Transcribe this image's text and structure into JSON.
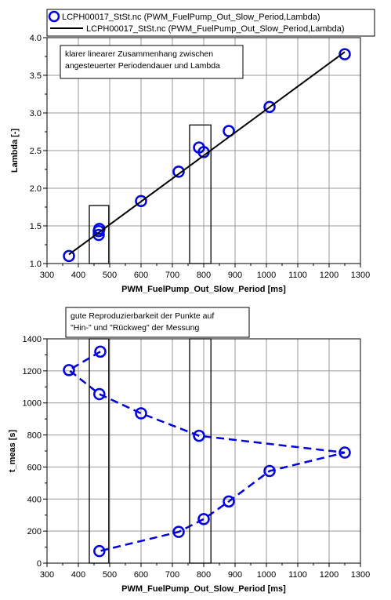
{
  "chart_data": [
    {
      "type": "scatter",
      "xlabel": "PWM_FuelPump_Out_Slow_Period [ms]",
      "ylabel": "Lambda [-]",
      "xlim": [
        300,
        1300
      ],
      "ylim": [
        1.0,
        4.0
      ],
      "xticks": [
        "300",
        "400",
        "500",
        "600",
        "700",
        "800",
        "900",
        "1000",
        "1100",
        "1200",
        "1300"
      ],
      "yticks": [
        "1.0",
        "1.5",
        "2.0",
        "2.5",
        "3.0",
        "3.5",
        "4.0"
      ],
      "grid": true,
      "legend": [
        "LCPH00017_StSt.nc (PWM_FuelPump_Out_Slow_Period,Lambda)",
        "LCPH00017_StSt.nc (PWM_FuelPump_Out_Slow_Period,Lambda)"
      ],
      "series": [
        {
          "style": "circle-markers",
          "color": "#0000e0",
          "points": [
            {
              "x": 370,
              "y": 1.1
            },
            {
              "x": 465,
              "y": 1.38
            },
            {
              "x": 465,
              "y": 1.43
            },
            {
              "x": 467,
              "y": 1.46
            },
            {
              "x": 600,
              "y": 1.83
            },
            {
              "x": 720,
              "y": 2.22
            },
            {
              "x": 785,
              "y": 2.54
            },
            {
              "x": 800,
              "y": 2.48
            },
            {
              "x": 880,
              "y": 2.76
            },
            {
              "x": 1010,
              "y": 3.08
            },
            {
              "x": 1250,
              "y": 3.78
            }
          ]
        },
        {
          "style": "solid-line",
          "color": "#000000",
          "points": [
            {
              "x": 370,
              "y": 1.12
            },
            {
              "x": 1250,
              "y": 3.81
            }
          ]
        }
      ],
      "annotation": {
        "lines": [
          "klarer linearer Zusammenhang zwischen",
          "angesteuerter Periodendauer und Lambda"
        ]
      },
      "highlight_boxes": [
        {
          "x0": 435,
          "x1": 497,
          "y0": 1.0,
          "y1": 1.77
        },
        {
          "x0": 755,
          "x1": 823,
          "y0": 1.0,
          "y1": 2.84
        }
      ]
    },
    {
      "type": "line",
      "xlabel": "PWM_FuelPump_Out_Slow_Period [ms]",
      "ylabel": "t_meas [s]",
      "xlim": [
        300,
        1300
      ],
      "ylim": [
        0,
        1400
      ],
      "xticks": [
        "300",
        "400",
        "500",
        "600",
        "700",
        "800",
        "900",
        "1000",
        "1100",
        "1200",
        "1300"
      ],
      "yticks": [
        "0",
        "200",
        "400",
        "600",
        "800",
        "1000",
        "1200",
        "1400"
      ],
      "grid": true,
      "series": [
        {
          "style": "dashed-line-circle-markers",
          "color": "#0000e0",
          "points": [
            {
              "x": 470,
              "y": 1320
            },
            {
              "x": 370,
              "y": 1205
            },
            {
              "x": 467,
              "y": 1055
            },
            {
              "x": 600,
              "y": 935
            },
            {
              "x": 785,
              "y": 795
            },
            {
              "x": 1250,
              "y": 690
            },
            {
              "x": 1010,
              "y": 575
            },
            {
              "x": 880,
              "y": 385
            },
            {
              "x": 800,
              "y": 275
            },
            {
              "x": 720,
              "y": 195
            },
            {
              "x": 467,
              "y": 75
            }
          ]
        }
      ],
      "annotation": {
        "lines": [
          "gute Reproduzierbarkeit der Punkte auf",
          "\"Hin-\" und \"Rückweg\" der Messung"
        ]
      },
      "highlight_boxes": [
        {
          "x0": 435,
          "x1": 497,
          "y0": 0,
          "y1": 1400
        },
        {
          "x0": 755,
          "x1": 823,
          "y0": 0,
          "y1": 1400
        }
      ]
    }
  ]
}
